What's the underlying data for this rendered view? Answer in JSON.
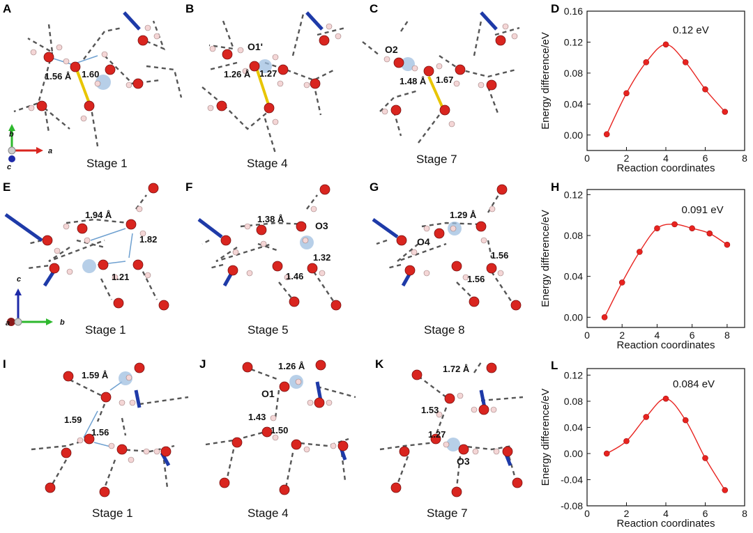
{
  "panels": [
    {
      "letter": "A",
      "stage": "Stage 1",
      "distances": [
        "1.56 Å",
        "1.60"
      ],
      "labels": []
    },
    {
      "letter": "B",
      "stage": "Stage 4",
      "distances": [
        "1.26 Å",
        "1.27"
      ],
      "labels": [
        "O1'"
      ]
    },
    {
      "letter": "C",
      "stage": "Stage 7",
      "distances": [
        "1.48 Å",
        "1.67"
      ],
      "labels": [
        "O2"
      ]
    },
    {
      "letter": "E",
      "stage": "Stage 1",
      "distances": [
        "1.94 Å",
        "1.82",
        "1.21"
      ],
      "labels": []
    },
    {
      "letter": "F",
      "stage": "Stage 5",
      "distances": [
        "1.38 Å",
        "1.32",
        "1.46"
      ],
      "labels": [
        "O3"
      ]
    },
    {
      "letter": "G",
      "stage": "Stage 8",
      "distances": [
        "1.29 Å",
        "1.56",
        "1.56"
      ],
      "labels": [
        "O4"
      ]
    },
    {
      "letter": "I",
      "stage": "Stage 1",
      "distances": [
        "1.59 Å",
        "1.59",
        "1.56"
      ],
      "labels": []
    },
    {
      "letter": "J",
      "stage": "Stage 4",
      "distances": [
        "1.26 Å",
        "1.43",
        "1.50"
      ],
      "labels": [
        "O1"
      ]
    },
    {
      "letter": "K",
      "stage": "Stage 7",
      "distances": [
        "1.72 Å",
        "1.53",
        "1.27"
      ],
      "labels": [
        "O3"
      ]
    }
  ],
  "axes": {
    "abc": {
      "a": "a",
      "b": "b",
      "c": "c"
    },
    "acb": {
      "c": "c",
      "a": "a",
      "b": "b"
    }
  },
  "chart_data": [
    {
      "letter": "D",
      "type": "line",
      "title": "",
      "xlabel": "Reaction coordinates",
      "ylabel": "Energy difference/eV",
      "annotation": "0.12 eV",
      "xlim": [
        0,
        8
      ],
      "ylim": [
        -0.02,
        0.16
      ],
      "xticks": [
        "0",
        "2",
        "4",
        "6",
        "8"
      ],
      "yticks": [
        "0.00",
        "0.04",
        "0.08",
        "0.12",
        "0.16"
      ],
      "x": [
        1,
        2,
        3,
        4,
        5,
        6,
        7
      ],
      "y": [
        0.001,
        0.054,
        0.094,
        0.117,
        0.094,
        0.059,
        0.03
      ],
      "color": "#e8231f"
    },
    {
      "letter": "H",
      "type": "line",
      "title": "",
      "xlabel": "Reaction coordinates",
      "ylabel": "Energy difference/eV",
      "annotation": "0.091 eV",
      "xlim": [
        0,
        9
      ],
      "ylim": [
        -0.01,
        0.125
      ],
      "xticks": [
        "0",
        "2",
        "4",
        "6",
        "8"
      ],
      "yticks": [
        "0.00",
        "0.04",
        "0.08",
        "0.12"
      ],
      "x": [
        1,
        2,
        3,
        4,
        5,
        6,
        7,
        8
      ],
      "y": [
        0.0,
        0.034,
        0.064,
        0.087,
        0.091,
        0.087,
        0.082,
        0.071
      ],
      "color": "#e8231f"
    },
    {
      "letter": "L",
      "type": "line",
      "title": "",
      "xlabel": "Reaction coordinates",
      "ylabel": "Energy difference/eV",
      "annotation": "0.084 eV",
      "xlim": [
        0,
        8
      ],
      "ylim": [
        -0.08,
        0.13
      ],
      "xticks": [
        "0",
        "2",
        "4",
        "6",
        "8"
      ],
      "yticks": [
        "-0.08",
        "-0.04",
        "0.00",
        "0.04",
        "0.08",
        "0.12"
      ],
      "x": [
        1,
        2,
        3,
        4,
        5,
        6,
        7
      ],
      "y": [
        0.0,
        0.019,
        0.056,
        0.084,
        0.051,
        -0.007,
        -0.056
      ],
      "color": "#e8231f"
    }
  ]
}
